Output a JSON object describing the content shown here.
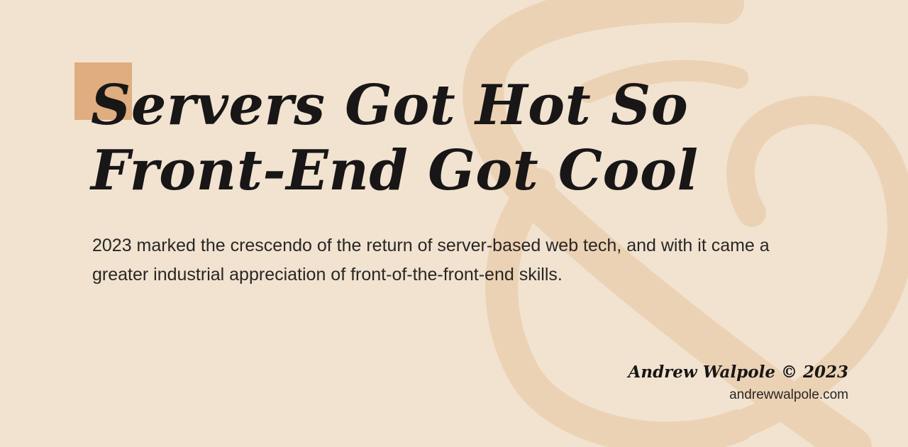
{
  "colors": {
    "background": "#f1e3d0",
    "ornament": "#ecd2b4",
    "accent": "#dfad7f",
    "text": "#181616"
  },
  "icons": {
    "background_ornament": "ampersand-ornament",
    "accent": "accent-square"
  },
  "title": {
    "line1": "Servers Got Hot So",
    "line2": "Front-End Got Cool"
  },
  "lede": "2023 marked the crescendo of the return of server-based web tech, and with it came a greater industrial appreciation of front-of-the-front-end skills.",
  "credit": {
    "author": "Andrew Walpole © 2023",
    "site": "andrewwalpole.com"
  }
}
